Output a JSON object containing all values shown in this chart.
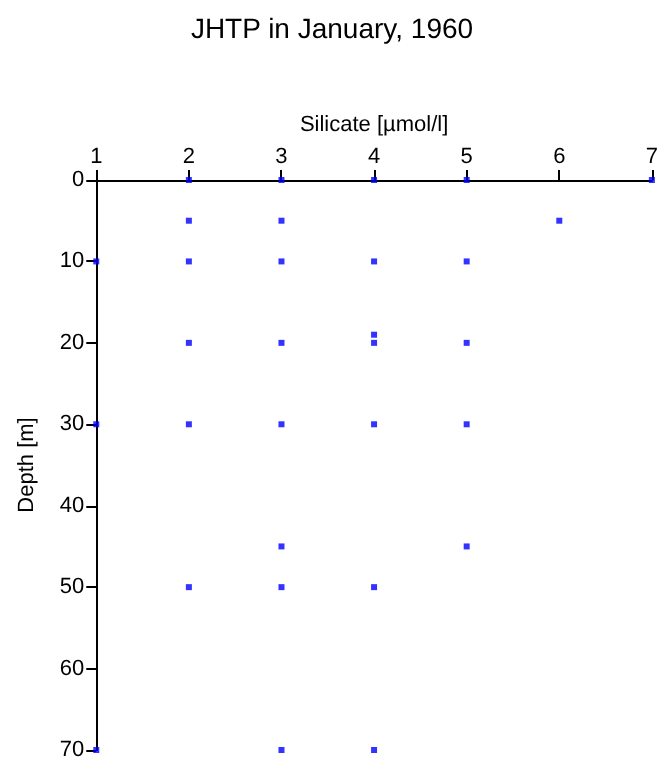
{
  "chart_data": {
    "type": "scatter",
    "title": "JHTP in January, 1960",
    "xlabel": "Silicate [µmol/l]",
    "ylabel": "Depth [m]",
    "x": [
      2,
      3,
      4,
      5,
      7,
      2,
      3,
      6,
      1,
      2,
      3,
      4,
      5,
      2,
      3,
      4,
      4,
      5,
      1,
      2,
      3,
      4,
      5,
      3,
      5,
      2,
      3,
      4,
      1,
      3,
      4
    ],
    "values": [
      0,
      0,
      0,
      0,
      0,
      5,
      5,
      5,
      10,
      10,
      10,
      10,
      10,
      20,
      20,
      19,
      20,
      20,
      30,
      30,
      30,
      30,
      30,
      45,
      45,
      50,
      50,
      50,
      70,
      70,
      70
    ],
    "color": "#0000ff",
    "marker": "square",
    "xlim": [
      1,
      7
    ],
    "xticks": [
      1,
      2,
      3,
      4,
      5,
      6,
      7
    ],
    "ylim": [
      70,
      0
    ],
    "yticks": [
      0,
      10,
      20,
      30,
      40,
      50,
      60,
      70
    ],
    "grid": false
  }
}
